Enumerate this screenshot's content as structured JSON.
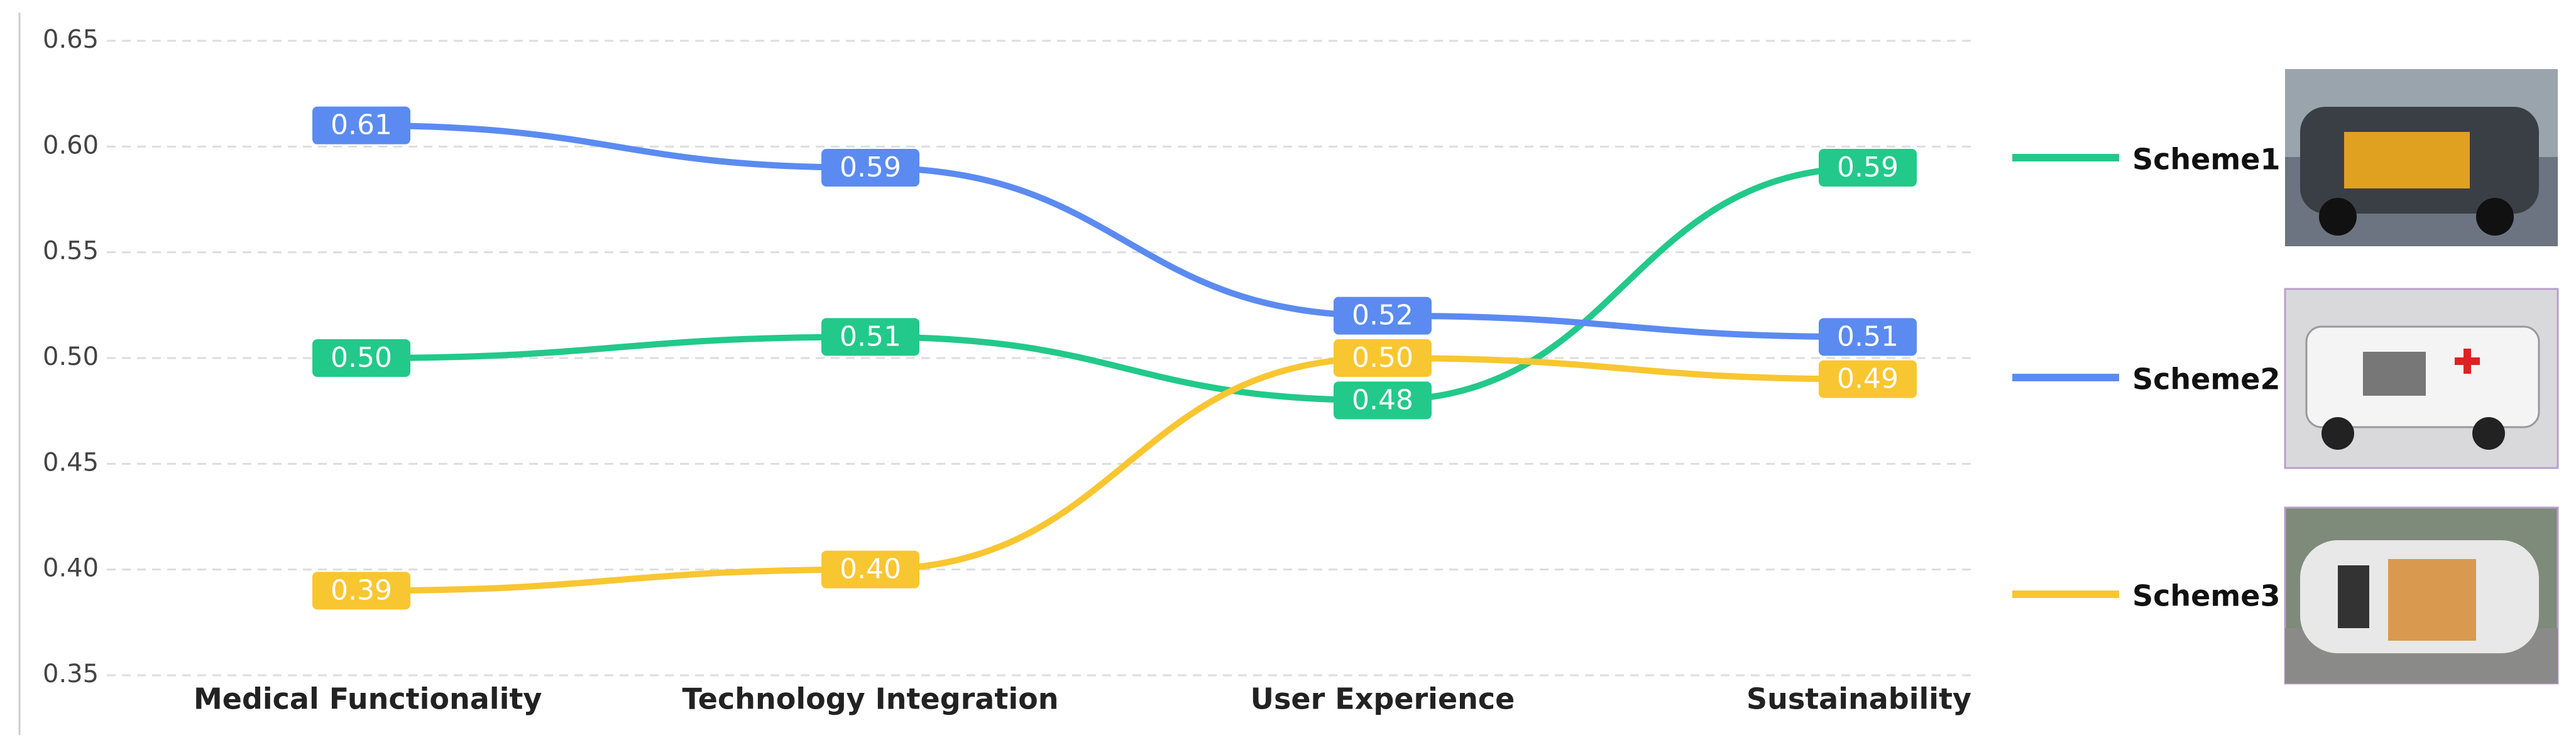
{
  "chart_data": {
    "type": "line",
    "categories": [
      "Medical Functionality",
      "Technology Integration",
      "User Experience",
      "Sustainability"
    ],
    "series": [
      {
        "name": "Scheme1",
        "color": "#22c98a",
        "values": [
          0.5,
          0.51,
          0.48,
          0.59
        ],
        "value_labels": [
          "0.50",
          "0.51",
          "0.48",
          "0.59"
        ]
      },
      {
        "name": "Scheme2",
        "color": "#5b8bf0",
        "values": [
          0.61,
          0.59,
          0.52,
          0.51
        ],
        "value_labels": [
          "0.61",
          "0.59",
          "0.52",
          "0.51"
        ]
      },
      {
        "name": "Scheme3",
        "color": "#f8c630",
        "values": [
          0.39,
          0.4,
          0.5,
          0.49
        ],
        "value_labels": [
          "0.39",
          "0.40",
          "0.50",
          "0.49"
        ]
      }
    ],
    "ylim": [
      0.35,
      0.65
    ],
    "yticks": [
      0.35,
      {
        "value": 0.4,
        "label": "0.40"
      },
      0.45,
      {
        "value": 0.5,
        "label": "0.50"
      },
      0.55,
      {
        "value": 0.6,
        "label": "0.60"
      },
      0.65
    ],
    "grid": true,
    "legend": "right"
  }
}
